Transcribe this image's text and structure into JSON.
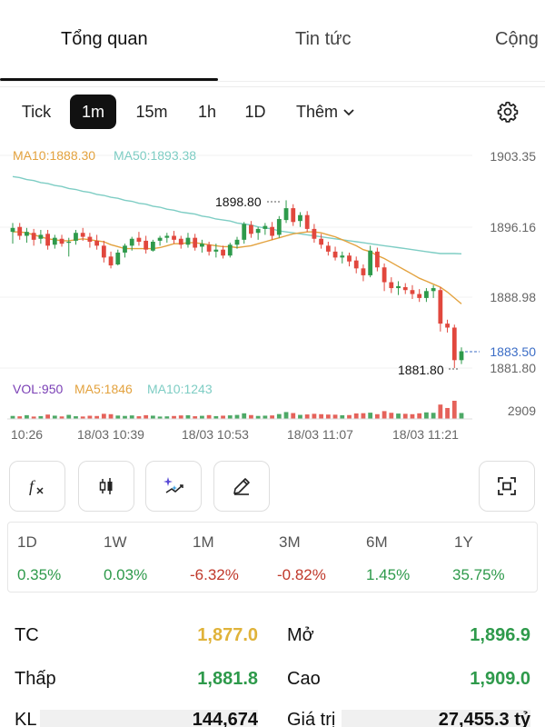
{
  "tabs": [
    "Tổng quan",
    "Tin tức",
    "Cộng"
  ],
  "intervals": {
    "items": [
      "Tick",
      "1m",
      "15m",
      "1h",
      "1D"
    ],
    "selected": "1m",
    "more_label": "Thêm"
  },
  "indicators": {
    "ma10": "MA10:1888.30",
    "ma50": "MA50:1893.38",
    "vol": "VOL:950",
    "vma5": "MA5:1846",
    "vma10": "MA10:1243"
  },
  "colors": {
    "up": "#2e9a4b",
    "down": "#e1473d",
    "ma10": "#e3a23e",
    "ma50": "#7ecdc4",
    "vol_label": "#7a3fb5",
    "last_price": "#3b6dc6",
    "reference": "#e0b33a"
  },
  "chart_data": {
    "type": "candlestick",
    "y_ticks": [
      "1903.35",
      "1896.16",
      "1888.98",
      "1881.80"
    ],
    "volume_tick": "2909",
    "x_ticks": [
      "10:26",
      "18/03 10:39",
      "18/03 10:53",
      "18/03 11:07",
      "18/03 11:21"
    ],
    "high_label": "1898.80",
    "low_label": "1881.80",
    "last_price_label": "1883.50",
    "ylim": [
      1881.8,
      1903.35
    ],
    "candles": [
      {
        "o": 1895.6,
        "h": 1896.5,
        "l": 1894.4,
        "c": 1896.0
      },
      {
        "o": 1896.1,
        "h": 1896.5,
        "l": 1894.8,
        "c": 1895.2
      },
      {
        "o": 1895.2,
        "h": 1896.0,
        "l": 1894.5,
        "c": 1895.6
      },
      {
        "o": 1895.5,
        "h": 1895.9,
        "l": 1894.2,
        "c": 1894.8
      },
      {
        "o": 1894.9,
        "h": 1895.8,
        "l": 1894.4,
        "c": 1895.3
      },
      {
        "o": 1895.4,
        "h": 1895.8,
        "l": 1893.8,
        "c": 1894.2
      },
      {
        "o": 1894.3,
        "h": 1895.3,
        "l": 1893.9,
        "c": 1895.0
      },
      {
        "o": 1894.9,
        "h": 1895.3,
        "l": 1894.1,
        "c": 1894.4
      },
      {
        "o": 1894.5,
        "h": 1895.0,
        "l": 1893.1,
        "c": 1894.6
      },
      {
        "o": 1894.7,
        "h": 1895.8,
        "l": 1894.3,
        "c": 1895.5
      },
      {
        "o": 1895.5,
        "h": 1896.0,
        "l": 1894.7,
        "c": 1895.1
      },
      {
        "o": 1895.1,
        "h": 1895.5,
        "l": 1894.0,
        "c": 1894.6
      },
      {
        "o": 1894.7,
        "h": 1895.3,
        "l": 1893.8,
        "c": 1894.2
      },
      {
        "o": 1894.2,
        "h": 1894.7,
        "l": 1892.5,
        "c": 1893.0
      },
      {
        "o": 1893.1,
        "h": 1893.6,
        "l": 1891.9,
        "c": 1892.2
      },
      {
        "o": 1892.3,
        "h": 1893.8,
        "l": 1892.2,
        "c": 1893.5
      },
      {
        "o": 1893.5,
        "h": 1894.4,
        "l": 1893.0,
        "c": 1894.2
      },
      {
        "o": 1894.2,
        "h": 1895.1,
        "l": 1893.7,
        "c": 1894.9
      },
      {
        "o": 1895.0,
        "h": 1895.6,
        "l": 1894.2,
        "c": 1894.6
      },
      {
        "o": 1894.7,
        "h": 1895.2,
        "l": 1893.4,
        "c": 1893.8
      },
      {
        "o": 1893.7,
        "h": 1894.8,
        "l": 1893.6,
        "c": 1894.6
      },
      {
        "o": 1894.7,
        "h": 1895.2,
        "l": 1894.2,
        "c": 1895.0
      },
      {
        "o": 1895.0,
        "h": 1895.5,
        "l": 1894.5,
        "c": 1895.2
      },
      {
        "o": 1895.2,
        "h": 1895.7,
        "l": 1894.4,
        "c": 1894.8
      },
      {
        "o": 1894.9,
        "h": 1895.2,
        "l": 1893.9,
        "c": 1894.3
      },
      {
        "o": 1894.3,
        "h": 1895.5,
        "l": 1894.0,
        "c": 1895.0
      },
      {
        "o": 1895.0,
        "h": 1895.4,
        "l": 1893.7,
        "c": 1894.0
      },
      {
        "o": 1894.1,
        "h": 1894.8,
        "l": 1893.5,
        "c": 1894.4
      },
      {
        "o": 1894.3,
        "h": 1894.6,
        "l": 1893.2,
        "c": 1893.6
      },
      {
        "o": 1893.6,
        "h": 1894.4,
        "l": 1893.0,
        "c": 1893.8
      },
      {
        "o": 1893.8,
        "h": 1894.2,
        "l": 1892.9,
        "c": 1893.2
      },
      {
        "o": 1893.2,
        "h": 1894.5,
        "l": 1893.0,
        "c": 1894.3
      },
      {
        "o": 1894.3,
        "h": 1895.1,
        "l": 1893.9,
        "c": 1894.8
      },
      {
        "o": 1894.8,
        "h": 1896.6,
        "l": 1894.4,
        "c": 1896.4
      },
      {
        "o": 1896.3,
        "h": 1896.7,
        "l": 1895.0,
        "c": 1895.4
      },
      {
        "o": 1895.5,
        "h": 1896.1,
        "l": 1894.8,
        "c": 1895.9
      },
      {
        "o": 1895.9,
        "h": 1896.5,
        "l": 1895.3,
        "c": 1896.2
      },
      {
        "o": 1896.1,
        "h": 1896.6,
        "l": 1894.8,
        "c": 1895.2
      },
      {
        "o": 1895.3,
        "h": 1897.2,
        "l": 1895.0,
        "c": 1896.9
      },
      {
        "o": 1896.8,
        "h": 1898.8,
        "l": 1896.5,
        "c": 1898.0
      },
      {
        "o": 1898.0,
        "h": 1898.4,
        "l": 1896.2,
        "c": 1896.6
      },
      {
        "o": 1896.7,
        "h": 1897.6,
        "l": 1896.1,
        "c": 1897.3
      },
      {
        "o": 1897.3,
        "h": 1897.7,
        "l": 1895.6,
        "c": 1895.9
      },
      {
        "o": 1895.9,
        "h": 1896.4,
        "l": 1894.5,
        "c": 1894.9
      },
      {
        "o": 1894.9,
        "h": 1895.4,
        "l": 1893.9,
        "c": 1894.3
      },
      {
        "o": 1894.2,
        "h": 1894.6,
        "l": 1893.2,
        "c": 1893.6
      },
      {
        "o": 1893.6,
        "h": 1894.1,
        "l": 1892.7,
        "c": 1893.0
      },
      {
        "o": 1893.0,
        "h": 1893.6,
        "l": 1892.4,
        "c": 1893.2
      },
      {
        "o": 1893.2,
        "h": 1893.5,
        "l": 1892.1,
        "c": 1892.6
      },
      {
        "o": 1892.7,
        "h": 1893.1,
        "l": 1891.4,
        "c": 1891.9
      },
      {
        "o": 1891.9,
        "h": 1892.3,
        "l": 1890.6,
        "c": 1891.2
      },
      {
        "o": 1891.2,
        "h": 1894.2,
        "l": 1891.0,
        "c": 1893.7
      },
      {
        "o": 1893.6,
        "h": 1894.0,
        "l": 1891.6,
        "c": 1892.0
      },
      {
        "o": 1892.0,
        "h": 1892.4,
        "l": 1889.6,
        "c": 1890.5
      },
      {
        "o": 1890.5,
        "h": 1891.0,
        "l": 1889.4,
        "c": 1889.9
      },
      {
        "o": 1889.9,
        "h": 1890.6,
        "l": 1889.2,
        "c": 1890.1
      },
      {
        "o": 1890.0,
        "h": 1890.4,
        "l": 1889.3,
        "c": 1889.7
      },
      {
        "o": 1889.7,
        "h": 1890.2,
        "l": 1888.8,
        "c": 1889.3
      },
      {
        "o": 1889.3,
        "h": 1889.8,
        "l": 1888.5,
        "c": 1888.9
      },
      {
        "o": 1888.9,
        "h": 1889.9,
        "l": 1888.5,
        "c": 1889.6
      },
      {
        "o": 1889.6,
        "h": 1890.2,
        "l": 1888.9,
        "c": 1889.9
      },
      {
        "o": 1889.7,
        "h": 1890.0,
        "l": 1885.5,
        "c": 1886.3
      },
      {
        "o": 1886.3,
        "h": 1886.7,
        "l": 1885.4,
        "c": 1885.9
      },
      {
        "o": 1885.9,
        "h": 1886.2,
        "l": 1881.8,
        "c": 1882.6
      },
      {
        "o": 1882.6,
        "h": 1883.9,
        "l": 1882.2,
        "c": 1883.5
      }
    ],
    "ma10": [
      1895.6,
      1895.6,
      1895.5,
      1895.3,
      1895.1,
      1894.9,
      1894.8,
      1894.7,
      1894.7,
      1894.8,
      1894.9,
      1894.8,
      1894.7,
      1894.6,
      1894.3,
      1894.1,
      1893.9,
      1893.9,
      1893.9,
      1893.9,
      1893.9,
      1894.0,
      1894.2,
      1894.4,
      1894.4,
      1894.5,
      1894.5,
      1894.4,
      1894.3,
      1894.2,
      1894.1,
      1894.1,
      1894.0,
      1894.1,
      1894.2,
      1894.4,
      1894.6,
      1894.8,
      1895.0,
      1895.2,
      1895.4,
      1895.5,
      1895.6,
      1895.6,
      1895.5,
      1895.3,
      1895.1,
      1894.8,
      1894.5,
      1894.2,
      1893.8,
      1893.6,
      1893.2,
      1892.9,
      1892.5,
      1892.1,
      1891.7,
      1891.3,
      1890.9,
      1890.6,
      1890.3,
      1890.0,
      1889.5,
      1888.9,
      1888.3
    ],
    "ma50": [
      1901.2,
      1901.1,
      1900.9,
      1900.8,
      1900.6,
      1900.5,
      1900.3,
      1900.2,
      1900.0,
      1899.9,
      1899.7,
      1899.6,
      1899.4,
      1899.3,
      1899.1,
      1899.0,
      1898.8,
      1898.7,
      1898.5,
      1898.4,
      1898.2,
      1898.1,
      1897.9,
      1897.8,
      1897.6,
      1897.5,
      1897.4,
      1897.2,
      1897.1,
      1896.9,
      1896.8,
      1896.7,
      1896.5,
      1896.4,
      1896.3,
      1896.1,
      1896.0,
      1895.9,
      1895.7,
      1895.6,
      1895.5,
      1895.4,
      1895.3,
      1895.2,
      1895.1,
      1895.0,
      1894.9,
      1894.8,
      1894.7,
      1894.6,
      1894.5,
      1894.4,
      1894.3,
      1894.2,
      1894.1,
      1894.0,
      1893.9,
      1893.8,
      1893.7,
      1893.6,
      1893.5,
      1893.4,
      1893.4,
      1893.4,
      1893.38
    ],
    "volumes": [
      480,
      420,
      600,
      380,
      450,
      700,
      520,
      400,
      650,
      430,
      390,
      510,
      470,
      820,
      760,
      540,
      480,
      560,
      430,
      600,
      520,
      380,
      410,
      470,
      560,
      590,
      430,
      500,
      610,
      450,
      520,
      570,
      640,
      900,
      620,
      480,
      520,
      560,
      780,
      1100,
      940,
      650,
      720,
      820,
      760,
      700,
      680,
      590,
      620,
      880,
      920,
      1000,
      760,
      1250,
      980,
      860,
      820,
      760,
      900,
      1050,
      980,
      2300,
      1750,
      2909,
      950
    ]
  },
  "tools": [
    "formula-icon",
    "candlestick-icon",
    "ai-magic-icon",
    "draw-icon",
    "fullscreen-icon"
  ],
  "performance": [
    {
      "label": "1D",
      "value": "0.35%",
      "dir": "up"
    },
    {
      "label": "1W",
      "value": "0.03%",
      "dir": "up"
    },
    {
      "label": "1M",
      "value": "-6.32%",
      "dir": "down"
    },
    {
      "label": "3M",
      "value": "-0.82%",
      "dir": "down"
    },
    {
      "label": "6M",
      "value": "1.45%",
      "dir": "up"
    },
    {
      "label": "1Y",
      "value": "35.75%",
      "dir": "up"
    }
  ],
  "stats": {
    "tc_label": "TC",
    "tc_value": "1,877.0",
    "mo_label": "Mở",
    "mo_value": "1,896.9",
    "thap_label": "Thấp",
    "thap_value": "1,881.8",
    "cao_label": "Cao",
    "cao_value": "1,909.0",
    "kl_label": "KL",
    "kl_value": "144,674",
    "gt_label": "Giá trị",
    "gt_value": "27,455.3 tỷ"
  }
}
